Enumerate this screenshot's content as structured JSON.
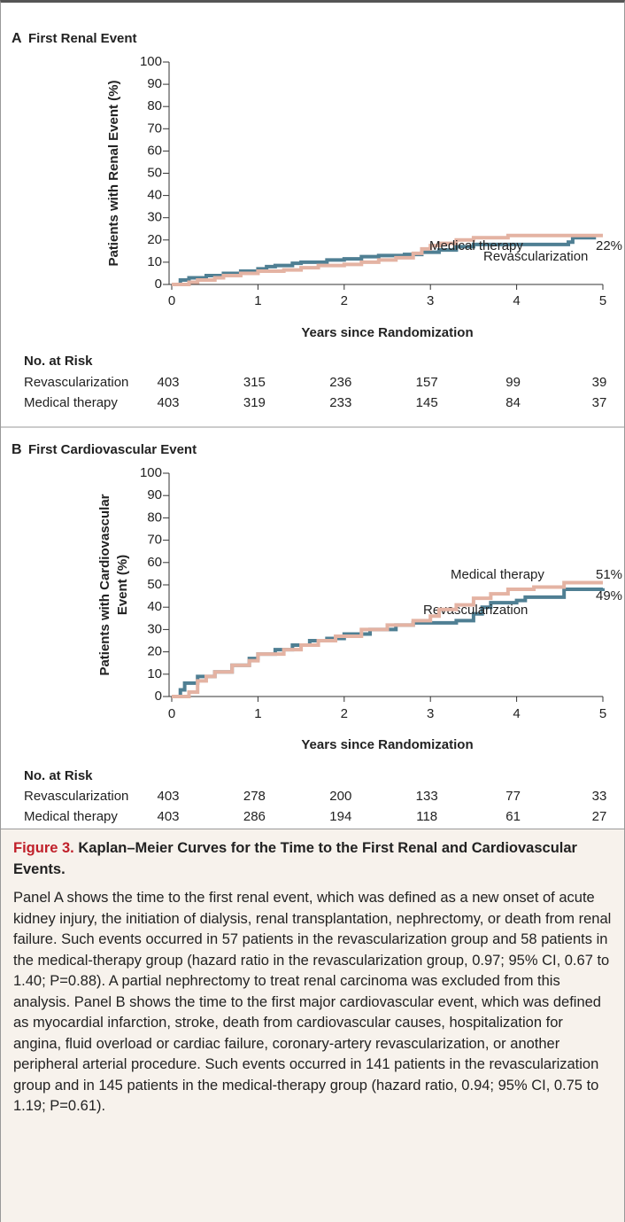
{
  "chart_data": [
    {
      "type": "step",
      "panel": "A",
      "title": "First Renal Event",
      "ylabel": [
        "Patients with Renal Event (%)"
      ],
      "xlabel": "Years since Randomization",
      "xlim": [
        0,
        5
      ],
      "xticks": [
        0,
        1,
        2,
        3,
        4,
        5
      ],
      "ylim": [
        0,
        100
      ],
      "yticks": [
        0,
        10,
        20,
        30,
        40,
        50,
        60,
        70,
        80,
        90,
        100
      ],
      "grid": false,
      "series": [
        {
          "name": "Revascularization",
          "color": "#4f7f93",
          "x": [
            0,
            0.1,
            0.2,
            0.4,
            0.6,
            0.8,
            1.0,
            1.1,
            1.2,
            1.4,
            1.5,
            1.8,
            2.0,
            2.2,
            2.4,
            2.7,
            2.9,
            3.1,
            3.3,
            3.5,
            4.6,
            4.65,
            4.9
          ],
          "values": [
            0,
            2,
            3,
            4,
            5,
            6,
            7,
            8,
            8.5,
            9.5,
            10,
            11,
            11.5,
            12.5,
            13,
            13.5,
            14.5,
            15.5,
            17,
            18,
            19,
            21,
            21.5
          ]
        },
        {
          "name": "Medical therapy",
          "color": "#e4b3a3",
          "end_label": "22%",
          "x": [
            0,
            0.2,
            0.3,
            0.5,
            0.6,
            0.8,
            1.0,
            1.3,
            1.5,
            1.7,
            2.0,
            2.2,
            2.4,
            2.6,
            2.8,
            2.9,
            3.0,
            3.1,
            3.3,
            3.5,
            3.9,
            5.0
          ],
          "values": [
            0,
            1,
            2,
            3,
            4,
            5,
            6,
            6.5,
            7.5,
            8.5,
            9,
            10,
            11,
            12,
            14,
            16,
            17.5,
            18.5,
            20,
            21,
            22,
            22
          ]
        }
      ],
      "at_risk": {
        "title": "No. at Risk",
        "rows": [
          {
            "name": "Revascularization",
            "values": [
              403,
              315,
              236,
              157,
              99,
              39
            ]
          },
          {
            "name": "Medical therapy",
            "values": [
              403,
              319,
              233,
              145,
              84,
              37
            ]
          }
        ]
      }
    },
    {
      "type": "step",
      "panel": "B",
      "title": "First Cardiovascular Event",
      "ylabel": [
        "Patients with Cardiovascular",
        "Event (%)"
      ],
      "xlabel": "Years since Randomization",
      "xlim": [
        0,
        5
      ],
      "xticks": [
        0,
        1,
        2,
        3,
        4,
        5
      ],
      "ylim": [
        0,
        100
      ],
      "yticks": [
        0,
        10,
        20,
        30,
        40,
        50,
        60,
        70,
        80,
        90,
        100
      ],
      "grid": false,
      "series": [
        {
          "name": "Revascularization",
          "color": "#4f7f93",
          "end_label": "49%",
          "x": [
            0,
            0.1,
            0.15,
            0.3,
            0.5,
            0.7,
            0.9,
            1.0,
            1.2,
            1.4,
            1.6,
            1.8,
            2.0,
            2.3,
            2.6,
            2.8,
            3.3,
            3.5,
            3.6,
            3.7,
            4.0,
            4.1,
            4.55,
            5.0
          ],
          "values": [
            0,
            3,
            6,
            9,
            11,
            14,
            17,
            19,
            21,
            23,
            25,
            26,
            28,
            30,
            32,
            33,
            34,
            37,
            40,
            42,
            43,
            44.5,
            48,
            48.5
          ]
        },
        {
          "name": "Medical therapy",
          "color": "#e4b3a3",
          "end_label": "51%",
          "x": [
            0,
            0.2,
            0.3,
            0.4,
            0.5,
            0.7,
            0.9,
            1.0,
            1.3,
            1.5,
            1.7,
            1.9,
            2.2,
            2.5,
            2.8,
            3.0,
            3.1,
            3.3,
            3.5,
            3.7,
            3.9,
            4.2,
            4.55,
            5.0
          ],
          "values": [
            0,
            2,
            7,
            9,
            11,
            14,
            16,
            19,
            21,
            23,
            25,
            27,
            30,
            32,
            34,
            36,
            39,
            41,
            44,
            46,
            48,
            49,
            51,
            51
          ]
        }
      ],
      "at_risk": {
        "title": "No. at Risk",
        "rows": [
          {
            "name": "Revascularization",
            "values": [
              403,
              278,
              200,
              133,
              77,
              33
            ]
          },
          {
            "name": "Medical therapy",
            "values": [
              403,
              286,
              194,
              118,
              61,
              27
            ]
          }
        ]
      }
    }
  ],
  "caption": {
    "label": "Figure 3.",
    "title": "Kaplan–Meier Curves for the Time to the First Renal and Cardiovascular Events.",
    "text": "Panel A shows the time to the first renal event, which was defined as a new onset of acute kidney injury, the initiation of dialysis, renal transplantation, nephrectomy, or death from renal failure. Such events occurred in 57 patients in the revascularization group and 58 patients in the medical-therapy group (hazard ratio in the revascularization group, 0.97; 95% CI, 0.67 to 1.40; P=0.88). A partial nephrectomy to treat renal carcinoma was excluded from this analysis. Panel B shows the time to the first major cardiovascular event, which was defined as myocardial infarction, stroke, death from cardiovascular causes, hospitalization for angina, fluid overload or cardiac failure, coronary-artery revascularization, or another peripheral arterial procedure. Such events occurred in 141 patients in the revascularization group and in 145 patients in the medical-therapy group (hazard ratio, 0.94; 95% CI, 0.75 to 1.19; P=0.61)."
  }
}
